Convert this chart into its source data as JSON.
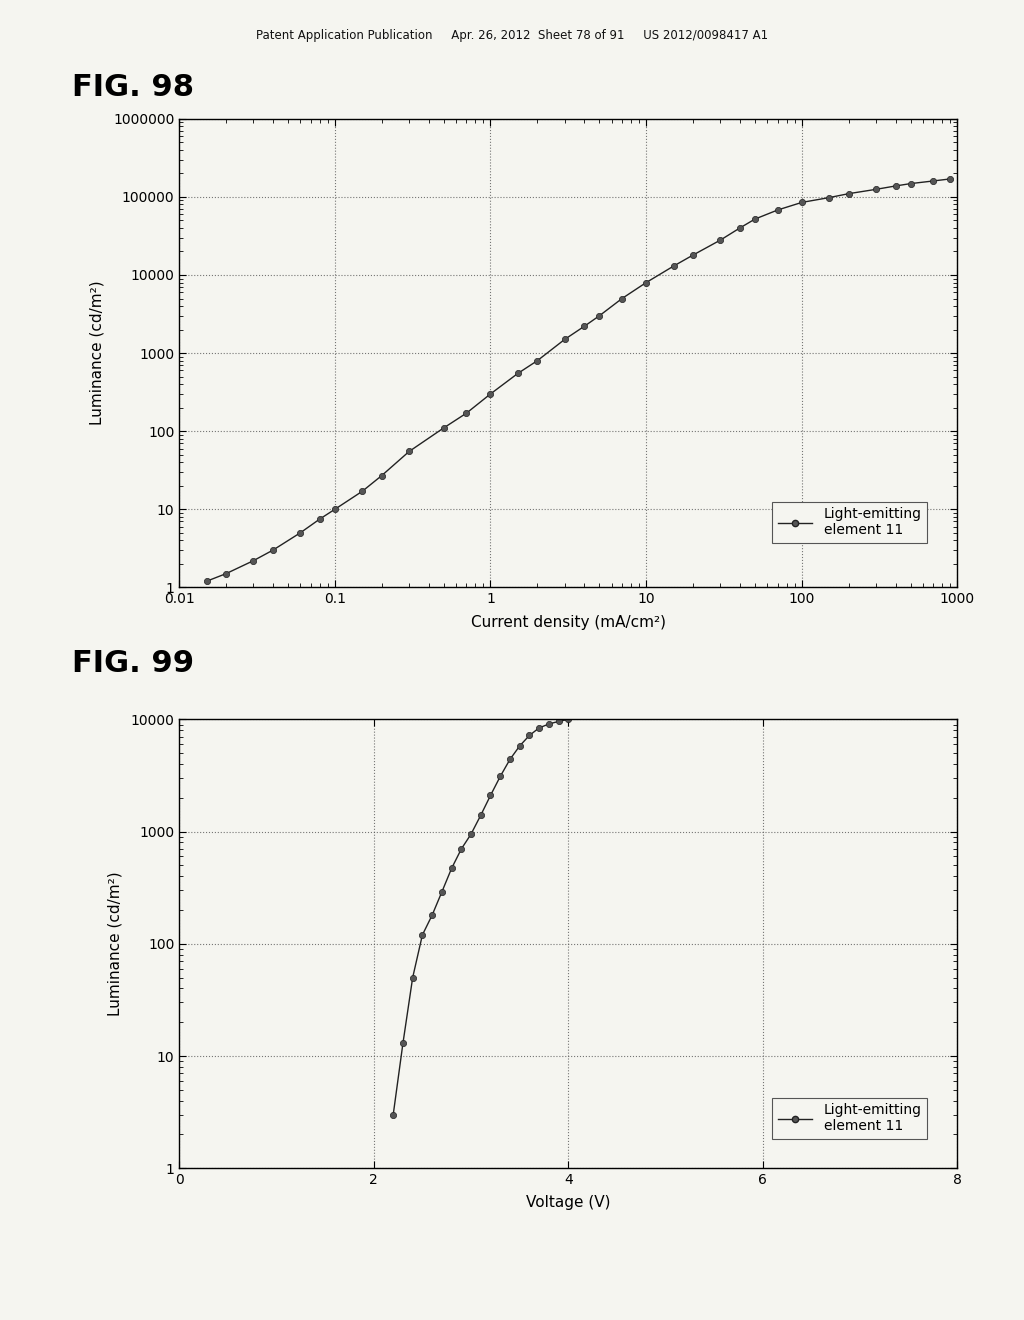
{
  "fig98_title": "FIG. 98",
  "fig99_title": "FIG. 99",
  "patent_header": "Patent Application Publication     Apr. 26, 2012  Sheet 78 of 91     US 2012/0098417 A1",
  "fig98_xlabel": "Current density (mA/cm²)",
  "fig98_ylabel": "Luminance (cd/m²)",
  "fig98_xticks": [
    0.01,
    0.1,
    1,
    10,
    100,
    1000
  ],
  "fig98_yticks": [
    1,
    10,
    100,
    1000,
    10000,
    100000,
    1000000
  ],
  "fig98_x": [
    0.015,
    0.02,
    0.03,
    0.04,
    0.06,
    0.08,
    0.1,
    0.15,
    0.2,
    0.3,
    0.5,
    0.7,
    1.0,
    1.5,
    2.0,
    3.0,
    4.0,
    5.0,
    7.0,
    10,
    15,
    20,
    30,
    40,
    50,
    70,
    100,
    150,
    200,
    300,
    400,
    500,
    700,
    900
  ],
  "fig98_y": [
    1.2,
    1.5,
    2.2,
    3.0,
    5.0,
    7.5,
    10,
    17,
    27,
    55,
    110,
    170,
    300,
    550,
    800,
    1500,
    2200,
    3000,
    5000,
    8000,
    13000,
    18000,
    28000,
    40000,
    52000,
    68000,
    85000,
    98000,
    110000,
    125000,
    138000,
    148000,
    160000,
    170000
  ],
  "fig99_xlabel": "Voltage (V)",
  "fig99_ylabel": "Luminance (cd/m²)",
  "fig99_xlim": [
    0,
    8
  ],
  "fig99_xticks": [
    0,
    2,
    4,
    6,
    8
  ],
  "fig99_yticks": [
    1,
    10,
    100,
    1000,
    10000
  ],
  "fig99_x": [
    2.2,
    2.3,
    2.4,
    2.5,
    2.6,
    2.7,
    2.8,
    2.9,
    3.0,
    3.1,
    3.2,
    3.3,
    3.4,
    3.5,
    3.6,
    3.7,
    3.8,
    3.9,
    4.0
  ],
  "fig99_y": [
    3,
    13,
    50,
    120,
    180,
    290,
    470,
    700,
    950,
    1400,
    2100,
    3100,
    4400,
    5800,
    7200,
    8400,
    9100,
    9600,
    10000
  ],
  "line_color": "#222222",
  "marker_color": "#555555",
  "legend_label": "Light-emitting\nelement 11",
  "background_color": "#f5f5f0",
  "grid_color": "#555555"
}
